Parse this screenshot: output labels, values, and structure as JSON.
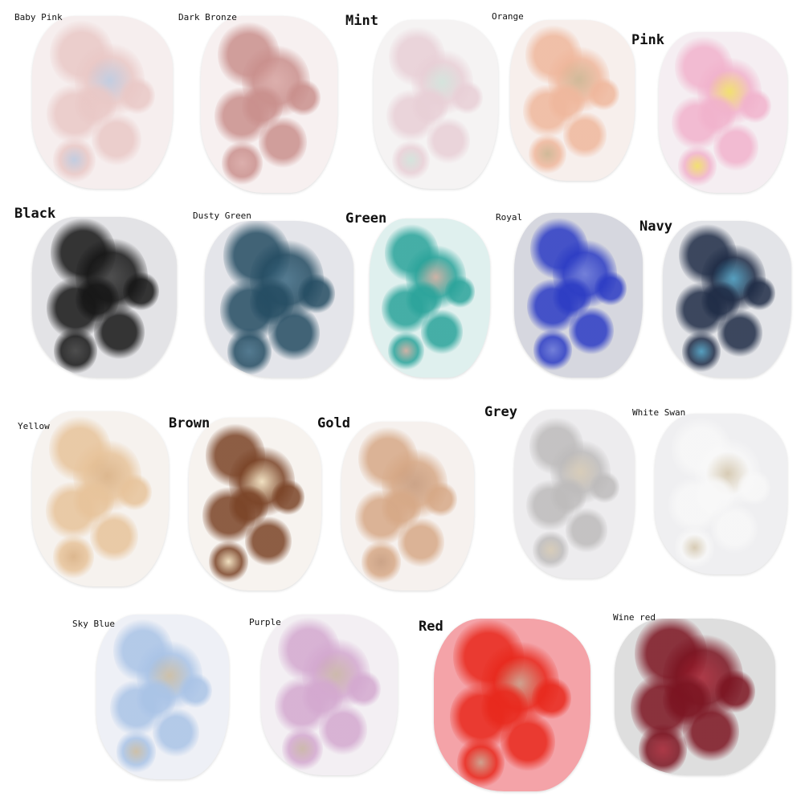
{
  "items": [
    {
      "label": "Baby Pink",
      "size": "sm",
      "fabric": "#f6eeee",
      "lace": "#e9c8c6",
      "accent": "#b9c7de"
    },
    {
      "label": "Dark Bronze",
      "size": "sm",
      "fabric": "#f7f0f0",
      "lace": "#c98f8c",
      "accent": "#d7a3a0"
    },
    {
      "label": "Mint",
      "size": "lg",
      "fabric": "#f5f3f3",
      "lace": "#e8cfd6",
      "accent": "#cfe1d8"
    },
    {
      "label": "Orange",
      "size": "sm",
      "fabric": "#f7efec",
      "lace": "#efb79c",
      "accent": "#c9b08a"
    },
    {
      "label": "Pink",
      "size": "lg",
      "fabric": "#f5eef2",
      "lace": "#f1b2cc",
      "accent": "#f1de5a"
    },
    {
      "label": "Black",
      "size": "lg",
      "fabric": "#e3e3e6",
      "lace": "#151515",
      "accent": "#333333"
    },
    {
      "label": "Dusty Green",
      "size": "sm",
      "fabric": "#e4e5ea",
      "lace": "#244c62",
      "accent": "#3a6780"
    },
    {
      "label": "Green",
      "size": "lg",
      "fabric": "#dff0ee",
      "lace": "#2aa39a",
      "accent": "#c9a79a"
    },
    {
      "label": "Royal",
      "size": "sm",
      "fabric": "#d6d7df",
      "lace": "#2b3bc4",
      "accent": "#6170d8"
    },
    {
      "label": "Navy",
      "size": "lg",
      "fabric": "#e3e4e8",
      "lace": "#1e2b45",
      "accent": "#3d93b8"
    },
    {
      "label": "Yellow",
      "size": "sm",
      "fabric": "#f6f2ee",
      "lace": "#e7c39a",
      "accent": "#d8ad7e"
    },
    {
      "label": "Brown",
      "size": "lg",
      "fabric": "#f7f3ef",
      "lace": "#7a4326",
      "accent": "#efdcb8"
    },
    {
      "label": "Gold",
      "size": "lg",
      "fabric": "#f6f1ee",
      "lace": "#d6a886",
      "accent": "#c49676"
    },
    {
      "label": "Grey",
      "size": "lg",
      "fabric": "#edecee",
      "lace": "#bdbbbb",
      "accent": "#d4c7b0"
    },
    {
      "label": "White Swan",
      "size": "sm",
      "fabric": "#efeff1",
      "lace": "#f8f8f8",
      "accent": "#d3c5aa"
    },
    {
      "label": "Sky Blue",
      "size": "sm",
      "fabric": "#eef0f6",
      "lace": "#a9c3e6",
      "accent": "#c8b89c"
    },
    {
      "label": "Purple",
      "size": "sm",
      "fabric": "#f3eff3",
      "lace": "#d3a8cf",
      "accent": "#c6b0a0"
    },
    {
      "label": "Red",
      "size": "lg",
      "fabric": "#f4a3a8",
      "lace": "#e8281c",
      "accent": "#c9a08a"
    },
    {
      "label": "Wine red",
      "size": "sm",
      "fabric": "#dedede",
      "lace": "#7b1320",
      "accent": "#a31c2c"
    }
  ]
}
